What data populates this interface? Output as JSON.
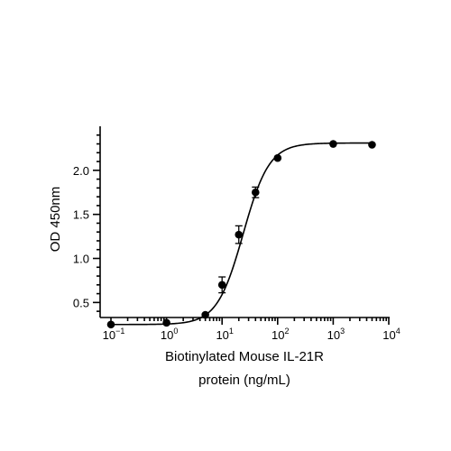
{
  "chart_data": {
    "type": "scatter",
    "title": "",
    "xlabel_lines": [
      "Biotinylated Mouse IL-21R",
      "protein (ng/mL)"
    ],
    "ylabel": "OD 450nm",
    "x_scale": "log",
    "xlim": [
      0.1,
      10000
    ],
    "ylim": [
      0.35,
      2.5
    ],
    "x_ticks": [
      {
        "value": 0.1,
        "base": "10",
        "exp": "−1"
      },
      {
        "value": 1,
        "base": "10",
        "exp": "0"
      },
      {
        "value": 10,
        "base": "10",
        "exp": "1"
      },
      {
        "value": 100,
        "base": "10",
        "exp": "2"
      },
      {
        "value": 1000,
        "base": "10",
        "exp": "3"
      },
      {
        "value": 10000,
        "base": "10",
        "exp": "4"
      }
    ],
    "y_ticks": [
      {
        "value": 0.5,
        "label": "0.5"
      },
      {
        "value": 1.0,
        "label": "1.0"
      },
      {
        "value": 1.5,
        "label": "1.5"
      },
      {
        "value": 2.0,
        "label": "2.0"
      }
    ],
    "grid": false,
    "legend": "none",
    "series": [
      {
        "points": [
          {
            "x": 0.1,
            "y": 0.25
          },
          {
            "x": 1.0,
            "y": 0.27
          },
          {
            "x": 5.0,
            "y": 0.36
          },
          {
            "x": 10.0,
            "y": 0.7,
            "err": 0.09
          },
          {
            "x": 20.0,
            "y": 1.27,
            "err": 0.1
          },
          {
            "x": 40.0,
            "y": 1.75,
            "err": 0.06
          },
          {
            "x": 100.0,
            "y": 2.14
          },
          {
            "x": 1000.0,
            "y": 2.3
          },
          {
            "x": 5000.0,
            "y": 2.29
          }
        ],
        "fit": {
          "model": "4PL",
          "bottom": 0.25,
          "top": 2.31,
          "ec50": 24,
          "hill": 1.85
        },
        "color": "#000000"
      }
    ]
  }
}
